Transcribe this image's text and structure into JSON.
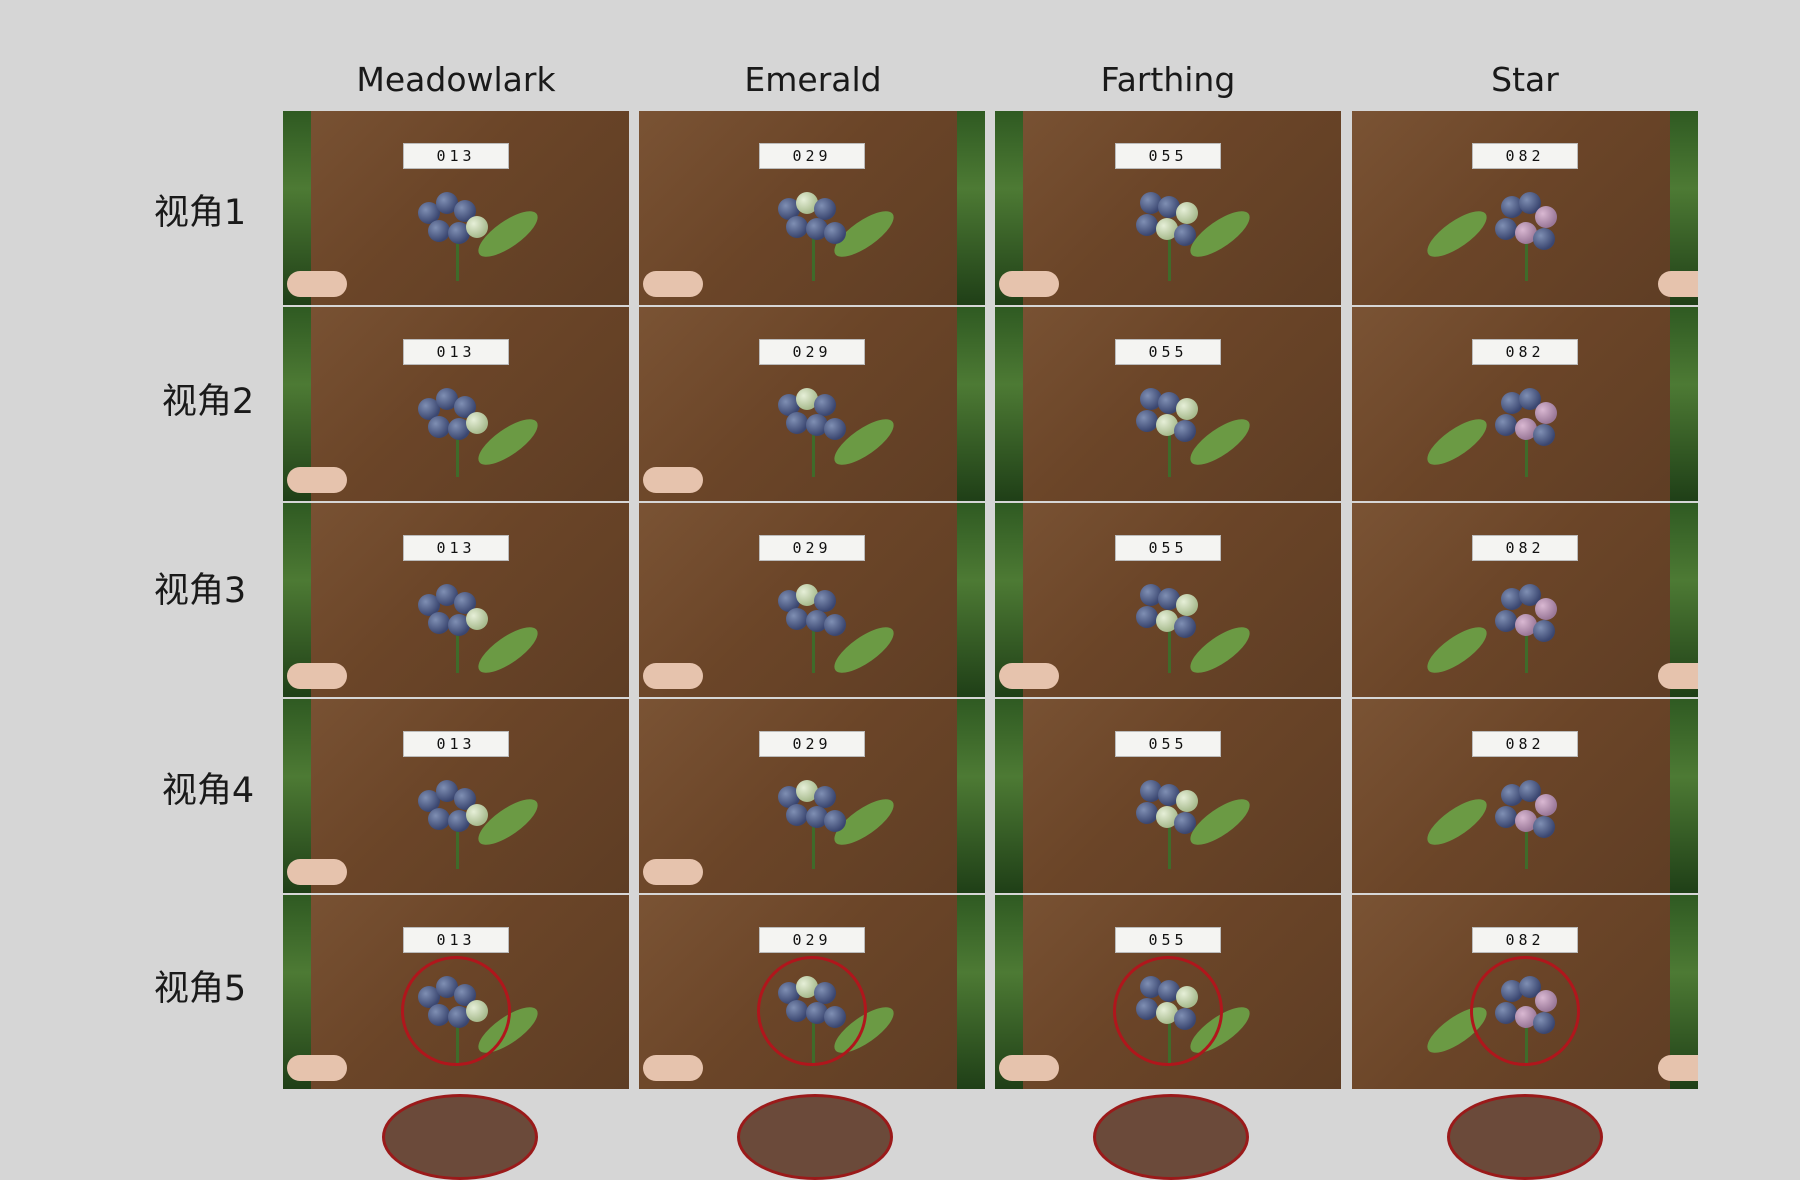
{
  "columns": [
    "Meadowlark",
    "Emerald",
    "Farthing",
    "Star"
  ],
  "rows": [
    "视角1",
    "视角2",
    "视角3",
    "视角4",
    "视角5"
  ],
  "tags": [
    "013",
    "029",
    "055",
    "082"
  ],
  "colors": {
    "background": "#d6d6d6",
    "board": "#6b4528",
    "berry": "#3a4670",
    "highlight_circle": "#b0161c"
  }
}
